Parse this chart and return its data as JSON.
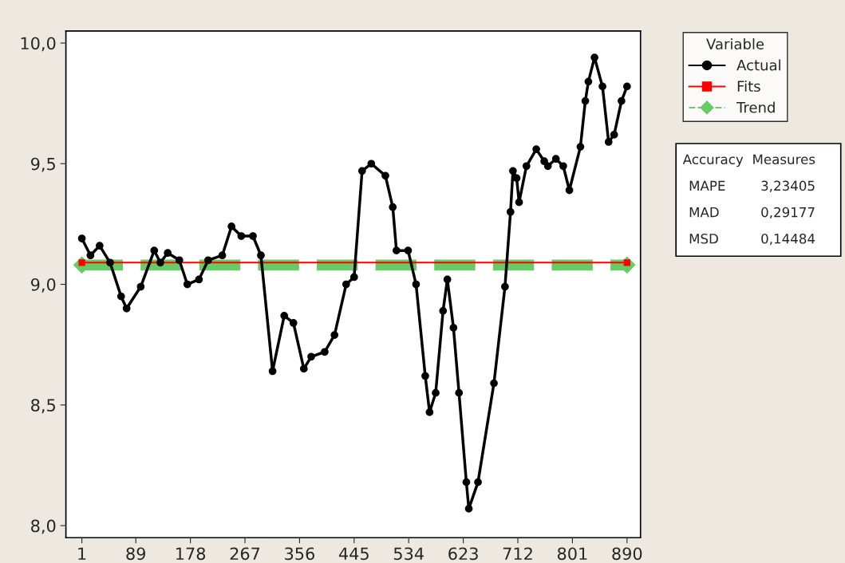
{
  "chart_data": {
    "type": "line",
    "legend_title": "Variable",
    "legend": "right",
    "grid": false,
    "xlim": [
      -25,
      912
    ],
    "ylim": [
      7.95,
      10.05
    ],
    "xticks": [
      1,
      89,
      178,
      267,
      356,
      445,
      534,
      623,
      712,
      801,
      890
    ],
    "yticks": [
      {
        "value": 8.0,
        "label": "8,0"
      },
      {
        "value": 8.5,
        "label": "8,5"
      },
      {
        "value": 9.0,
        "label": "9,0"
      },
      {
        "value": 9.5,
        "label": "9,5"
      },
      {
        "value": 10.0,
        "label": "10,0"
      }
    ],
    "series": [
      {
        "name": "Actual",
        "color": "#000000",
        "marker": "circle",
        "line_style": "solid",
        "x": [
          1,
          15,
          30,
          47,
          65,
          74,
          97,
          119,
          129,
          141,
          160,
          173,
          192,
          207,
          230,
          245,
          261,
          280,
          293,
          312,
          331,
          346,
          363,
          375,
          397,
          413,
          432,
          445,
          458,
          473,
          496,
          508,
          514,
          533,
          546,
          561,
          568,
          578,
          590,
          597,
          607,
          616,
          628,
          632,
          647,
          673,
          691,
          700,
          704,
          710,
          714,
          726,
          742,
          755,
          761,
          774,
          786,
          796,
          814,
          822,
          827,
          837,
          850,
          860,
          869,
          881,
          890
        ],
        "values": [
          9.19,
          9.12,
          9.16,
          9.09,
          8.95,
          8.9,
          8.99,
          9.14,
          9.09,
          9.13,
          9.1,
          9.0,
          9.02,
          9.1,
          9.12,
          9.24,
          9.2,
          9.2,
          9.12,
          8.64,
          8.87,
          8.84,
          8.65,
          8.7,
          8.72,
          8.79,
          9.0,
          9.03,
          9.47,
          9.5,
          9.45,
          9.32,
          9.14,
          9.14,
          9.0,
          8.62,
          8.47,
          8.55,
          8.89,
          9.02,
          8.82,
          8.55,
          8.18,
          8.07,
          8.18,
          8.59,
          8.99,
          9.3,
          9.47,
          9.44,
          9.34,
          9.49,
          9.56,
          9.51,
          9.49,
          9.52,
          9.49,
          9.39,
          9.57,
          9.76,
          9.84,
          9.94,
          9.82,
          9.59,
          9.62,
          9.76,
          9.82
        ]
      },
      {
        "name": "Fits",
        "color": "#ff0000",
        "marker": "square",
        "line_style": "solid",
        "x": [
          1,
          890
        ],
        "values": [
          9.09,
          9.09
        ]
      },
      {
        "name": "Trend",
        "color": "#66cc66",
        "marker": "diamond",
        "line_style": "dashed",
        "x": [
          1,
          890
        ],
        "values": [
          9.08,
          9.08
        ]
      }
    ],
    "annotations": [
      "Accuracy",
      "Measures",
      "MAPE",
      "3,23405",
      "MAD",
      "0,29177",
      "MSD",
      "0,14484"
    ]
  }
}
